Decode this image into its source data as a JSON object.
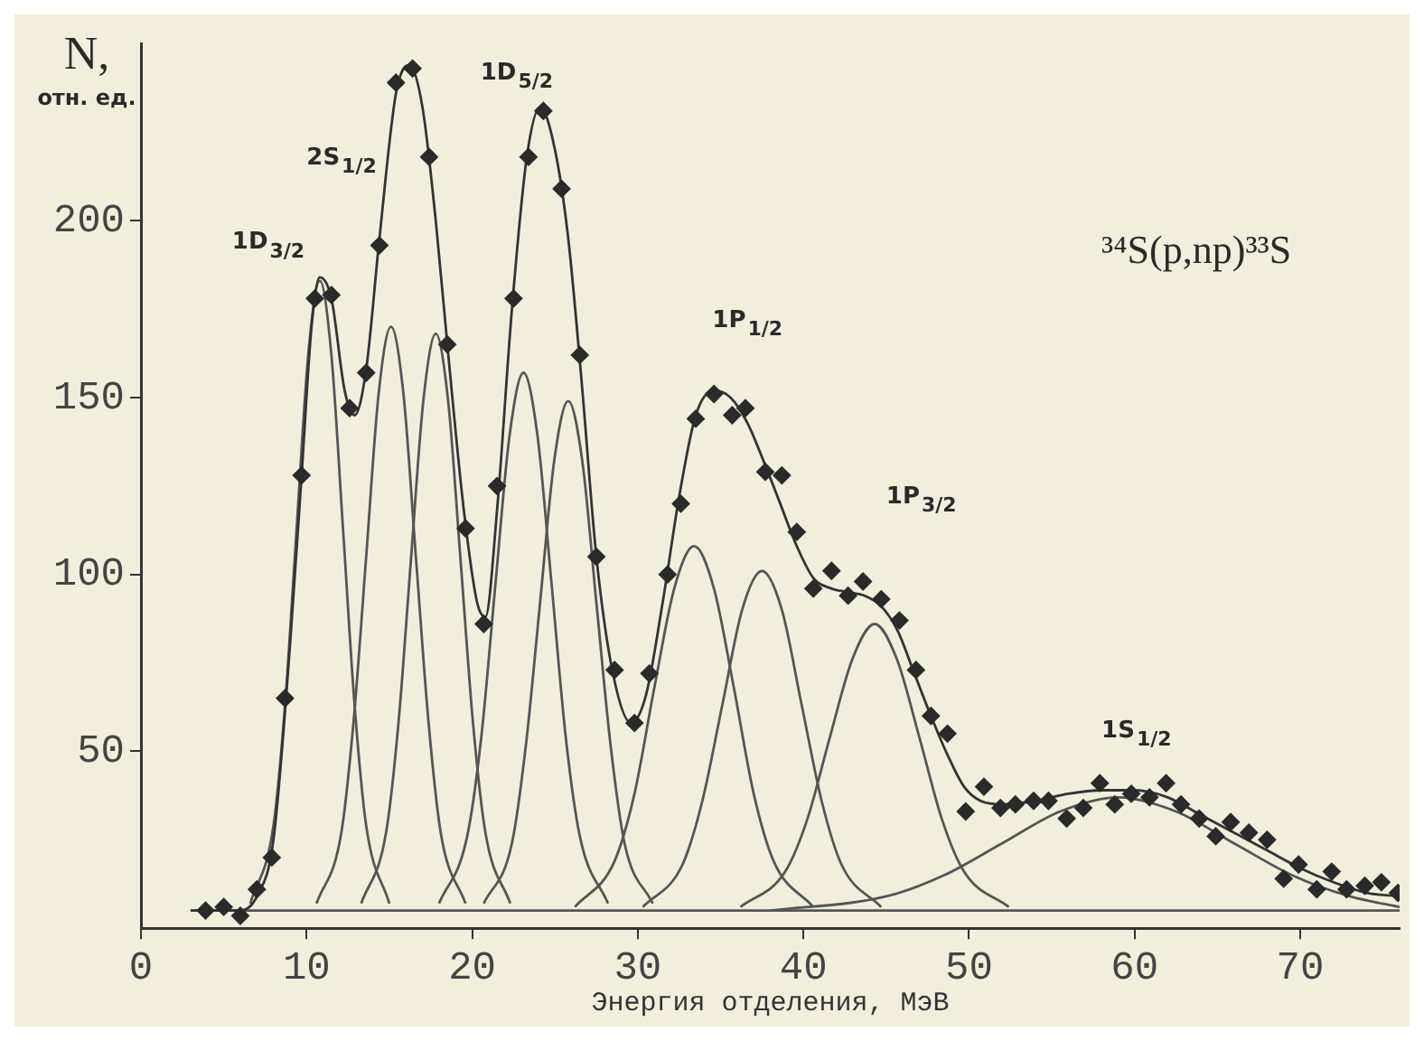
{
  "chart_data": {
    "type": "line",
    "xlabel": "Энергия отделения, МэВ",
    "ylabel": "N, отн. ед.",
    "annotations": [
      "1D$_{3/2}$",
      "2S$_{1/2}$",
      "1D$_{5/2}$",
      "1P$_{1/2}$",
      "1P$_{3/2}$",
      "1S$_{1/2}$",
      "³⁴S(p,np)³³S"
    ],
    "xlim": [
      0,
      76
    ],
    "ylim": [
      0,
      250
    ],
    "xticks": [
      0,
      10,
      20,
      30,
      40,
      50,
      60,
      70
    ],
    "yticks": [
      50,
      100,
      150,
      200
    ],
    "grid": false,
    "legend": false,
    "series": [
      {
        "type": "scatter",
        "marker": "diamond",
        "color": "#2a2a2a",
        "x": [
          3.9,
          5.0,
          6.0,
          7.0,
          7.9,
          8.7,
          9.7,
          10.5,
          11.5,
          12.6,
          13.6,
          14.4,
          15.4,
          16.4,
          17.4,
          18.5,
          19.6,
          20.7,
          21.5,
          22.5,
          23.4,
          24.3,
          25.4,
          26.5,
          27.5,
          28.6,
          29.8,
          30.7,
          31.8,
          32.6,
          33.5,
          34.6,
          35.7,
          36.5,
          37.7,
          38.7,
          39.6,
          40.6,
          41.7,
          42.7,
          43.6,
          44.7,
          45.8,
          46.8,
          47.7,
          48.7,
          49.8,
          50.9,
          51.9,
          52.8,
          53.9,
          54.8,
          55.9,
          56.9,
          57.9,
          58.8,
          59.8,
          60.9,
          61.9,
          62.8,
          63.9,
          64.9,
          65.8,
          66.9,
          68.0,
          69.0,
          69.9,
          71.0,
          71.9,
          72.8,
          73.9,
          74.9,
          75.9
        ],
        "values": [
          5,
          6,
          3.5,
          11,
          20,
          65,
          128,
          178,
          179,
          147,
          157,
          193,
          239,
          243,
          218,
          165,
          113,
          86,
          125,
          178,
          218,
          231,
          209,
          162,
          105,
          73,
          58,
          72,
          100,
          120,
          144,
          151,
          145,
          147,
          129,
          128,
          112,
          96,
          101,
          94,
          98,
          93,
          87,
          73,
          60,
          55,
          33,
          40,
          34,
          35,
          36,
          36,
          31,
          34,
          41,
          35,
          38,
          37,
          41,
          35,
          31,
          26,
          30,
          27,
          25,
          14,
          18,
          11,
          16,
          11,
          12,
          13,
          10
        ]
      },
      {
        "type": "line",
        "color": "#333333",
        "x": [
          3,
          6,
          7,
          8,
          9,
          9.7,
          10.3,
          10.8,
          11.5,
          12.3,
          12.9,
          13.6,
          14.4,
          15.4,
          16.2,
          17.0,
          17.8,
          18.6,
          19.5,
          20.3,
          20.8,
          21.5,
          22.4,
          23.3,
          24.1,
          25.0,
          25.8,
          26.6,
          27.5,
          28.5,
          29.6,
          30.5,
          31.5,
          32.5,
          33.5,
          34.6,
          35.6,
          36.6,
          37.6,
          38.6,
          39.6,
          40.6,
          41.7,
          42.7,
          43.7,
          44.7,
          45.7,
          46.7,
          47.7,
          48.7,
          49.7,
          50.7,
          52,
          54,
          56,
          58,
          60,
          62,
          64,
          66,
          68,
          70,
          72,
          74,
          76
        ],
        "values": [
          5,
          5,
          9,
          25,
          80,
          128,
          170,
          184,
          178,
          152,
          145,
          158,
          195,
          236,
          244,
          232,
          200,
          160,
          118,
          92,
          88,
          118,
          175,
          218,
          232,
          220,
          195,
          155,
          105,
          72,
          58,
          66,
          92,
          122,
          145,
          152,
          150,
          143,
          132,
          120,
          108,
          99,
          96,
          95,
          94,
          91,
          84,
          72,
          60,
          49,
          40,
          36,
          35,
          36,
          38,
          39,
          39,
          37,
          32,
          27,
          22,
          17,
          13,
          10,
          9
        ]
      },
      {
        "type": "line",
        "color": "#555555",
        "x": [
          3,
          76
        ],
        "values": [
          5,
          5
        ]
      },
      {
        "type": "line",
        "color": "#555555",
        "x": [
          6.6,
          8.0,
          8.7,
          9.4,
          10.1,
          10.8,
          11.5,
          12.2,
          12.9,
          13.6,
          15.0
        ],
        "values": [
          7,
          29,
          63,
          113,
          162,
          183,
          162,
          113,
          63,
          29,
          7
        ]
      },
      {
        "type": "line",
        "color": "#555555",
        "x": [
          10.6,
          12.1,
          12.85,
          13.6,
          14.35,
          15.1,
          15.85,
          16.6,
          17.35,
          18.1,
          19.6
        ],
        "values": [
          7,
          27,
          59,
          105,
          151,
          170,
          151,
          105,
          59,
          27,
          7
        ]
      },
      {
        "type": "line",
        "color": "#555555",
        "x": [
          13.3,
          14.8,
          15.55,
          16.3,
          17.05,
          17.8,
          18.55,
          19.3,
          20.05,
          20.8,
          22.3
        ],
        "values": [
          7,
          27,
          58,
          104,
          149,
          168,
          149,
          104,
          58,
          27,
          7
        ]
      },
      {
        "type": "line",
        "color": "#555555",
        "x": [
          18.0,
          19.7,
          20.55,
          21.4,
          22.25,
          23.1,
          23.95,
          24.8,
          25.65,
          26.5,
          28.2
        ],
        "values": [
          7,
          26,
          54,
          97,
          139,
          157,
          139,
          97,
          54,
          26,
          7
        ]
      },
      {
        "type": "line",
        "color": "#555555",
        "x": [
          20.7,
          22.4,
          23.25,
          24.1,
          24.95,
          25.8,
          26.65,
          27.5,
          28.35,
          29.2,
          30.9
        ],
        "values": [
          7,
          24,
          52,
          92,
          132,
          149,
          132,
          92,
          52,
          24,
          7
        ]
      },
      {
        "type": "line",
        "color": "#555555",
        "x": [
          26.2,
          28.6,
          29.8,
          31.0,
          32.2,
          33.4,
          34.6,
          35.8,
          37.0,
          38.2,
          40.6
        ],
        "values": [
          6,
          19,
          38,
          68,
          96,
          108,
          96,
          68,
          38,
          19,
          6
        ]
      },
      {
        "type": "line",
        "color": "#555555",
        "x": [
          30.3,
          32.7,
          33.9,
          35.1,
          36.3,
          37.5,
          38.7,
          39.9,
          41.1,
          42.3,
          44.7
        ],
        "values": [
          6,
          18,
          36,
          63,
          90,
          101,
          90,
          63,
          36,
          18,
          6
        ]
      },
      {
        "type": "line",
        "color": "#555555",
        "x": [
          36.2,
          38.9,
          40.25,
          41.6,
          42.95,
          44.3,
          45.65,
          47.0,
          48.35,
          49.7,
          52.4
        ],
        "values": [
          6,
          16,
          31,
          54,
          76,
          86,
          76,
          54,
          31,
          16,
          6
        ]
      },
      {
        "type": "line",
        "color": "#555555",
        "x": [
          38,
          45,
          48.5,
          52,
          55.5,
          59,
          62.5,
          66,
          69.5,
          73,
          76
        ],
        "values": [
          5,
          9,
          15,
          24,
          33,
          37,
          33,
          24,
          15,
          9,
          6
        ]
      }
    ]
  }
}
